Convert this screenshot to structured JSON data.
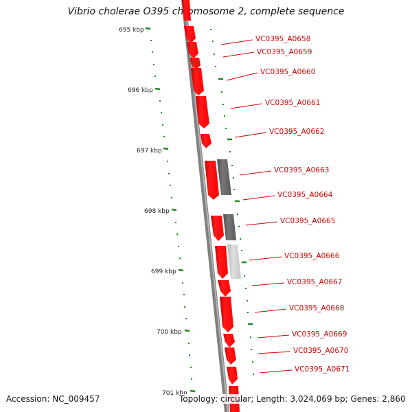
{
  "title": "Vibrio cholerae O395 chromosome 2, complete sequence",
  "ruler_labels": [
    "695 kbp",
    "696 kbp",
    "697 kbp",
    "698 kbp",
    "699 kbp",
    "700 kbp",
    "701 kbp"
  ],
  "gene_labels": [
    "VC0395_A0658",
    "VC0395_A0659",
    "VC0395_A0660",
    "VC0395_A0661",
    "VC0395_A0662",
    "VC0395_A0663",
    "VC0395_A0664",
    "VC0395_A0665",
    "VC0395_A0666",
    "VC0395_A0667",
    "VC0395_A0668",
    "VC0395_A0669",
    "VC0395_A0670",
    "VC0395_A0671"
  ],
  "footer": {
    "accession": "Accession: NC_009457",
    "info": "Topology: circular; Length: 3,024,069 bp; Genes: 2,860"
  },
  "colors": {
    "gene_red": "#ff0000",
    "gene_dark_gray": "#666666",
    "gene_light_gray": "#cccccc",
    "tick_green": "#1a8a1a",
    "backbone_gray": "#808080",
    "label_red": "#cc0000"
  }
}
